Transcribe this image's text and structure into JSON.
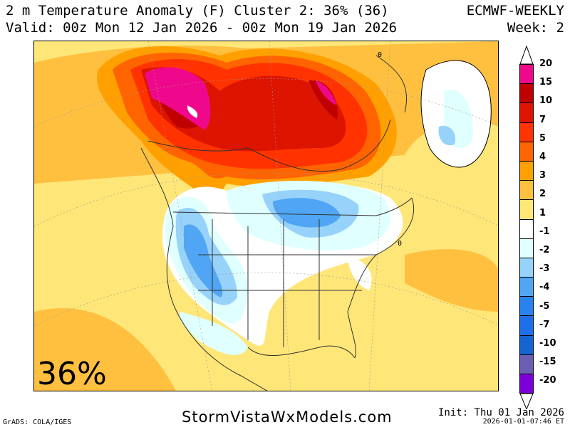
{
  "header": {
    "title": "2 m Temperature Anomaly (F) Cluster 2: 36% (36)",
    "valid": "Valid: 00z Mon 12 Jan 2026 - 00z Mon 19 Jan 2026",
    "model": "ECMWF-WEEKLY",
    "week": "Week: 2"
  },
  "map": {
    "cluster_percent": "36%",
    "contour_label": "0"
  },
  "colorbar": {
    "labels": [
      "20",
      "15",
      "10",
      "7",
      "5",
      "4",
      "3",
      "2",
      "1",
      "-1",
      "-2",
      "-3",
      "-4",
      "-5",
      "-7",
      "-10",
      "-15",
      "-20"
    ],
    "colors": [
      "#f0088c",
      "#c00000",
      "#dc1400",
      "#ff3200",
      "#ff6400",
      "#ffa000",
      "#ffc040",
      "#ffe678",
      "#ffffff",
      "#e0ffff",
      "#96d2fa",
      "#50a5f5",
      "#2882f0",
      "#1e6eeb",
      "#1464d2",
      "#6a5fb4",
      "#7d00dc"
    ]
  },
  "footer": {
    "grads": "GrADS: COLA/IGES",
    "site": "StormVistaWxModels.com",
    "init": "Init: Thu 01 Jan 2026",
    "timestamp": "2026-01-01-07:46 ET"
  }
}
